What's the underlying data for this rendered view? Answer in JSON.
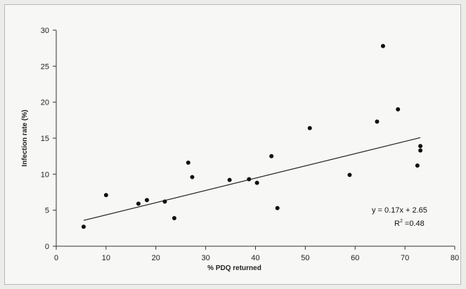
{
  "chart_data": {
    "type": "scatter",
    "xlabel": "% PDQ returned",
    "ylabel": "Infection rate (%)",
    "xlim": [
      0,
      80
    ],
    "ylim": [
      0,
      30
    ],
    "x_ticks": [
      0,
      10,
      20,
      30,
      40,
      50,
      60,
      70,
      80
    ],
    "y_ticks": [
      0,
      5,
      10,
      15,
      20,
      25,
      30
    ],
    "grid": false,
    "marker_color": "#111111",
    "series": [
      {
        "points": [
          {
            "x": 5.5,
            "y": 2.7
          },
          {
            "x": 10,
            "y": 7.1
          },
          {
            "x": 16.5,
            "y": 5.9
          },
          {
            "x": 18.2,
            "y": 6.4
          },
          {
            "x": 21.8,
            "y": 6.2
          },
          {
            "x": 23.7,
            "y": 3.9
          },
          {
            "x": 26.5,
            "y": 11.6
          },
          {
            "x": 27.3,
            "y": 9.6
          },
          {
            "x": 34.8,
            "y": 9.2
          },
          {
            "x": 38.7,
            "y": 9.3
          },
          {
            "x": 40.3,
            "y": 8.8
          },
          {
            "x": 43.2,
            "y": 12.5
          },
          {
            "x": 44.4,
            "y": 5.3
          },
          {
            "x": 50.9,
            "y": 16.4
          },
          {
            "x": 58.9,
            "y": 9.9
          },
          {
            "x": 64.4,
            "y": 17.3
          },
          {
            "x": 65.6,
            "y": 27.8
          },
          {
            "x": 68.6,
            "y": 19.0
          },
          {
            "x": 72.5,
            "y": 11.2
          },
          {
            "x": 73.1,
            "y": 13.9
          },
          {
            "x": 73.1,
            "y": 13.3
          }
        ]
      }
    ],
    "trendline": {
      "slope": 0.17,
      "intercept": 2.65,
      "x_range": [
        5.5,
        73.1
      ]
    },
    "annotations": {
      "equation": "y = 0.17x + 2.65",
      "r2_prefix": "R",
      "r2_exponent": "2",
      "r2_value": " =0.48"
    }
  }
}
